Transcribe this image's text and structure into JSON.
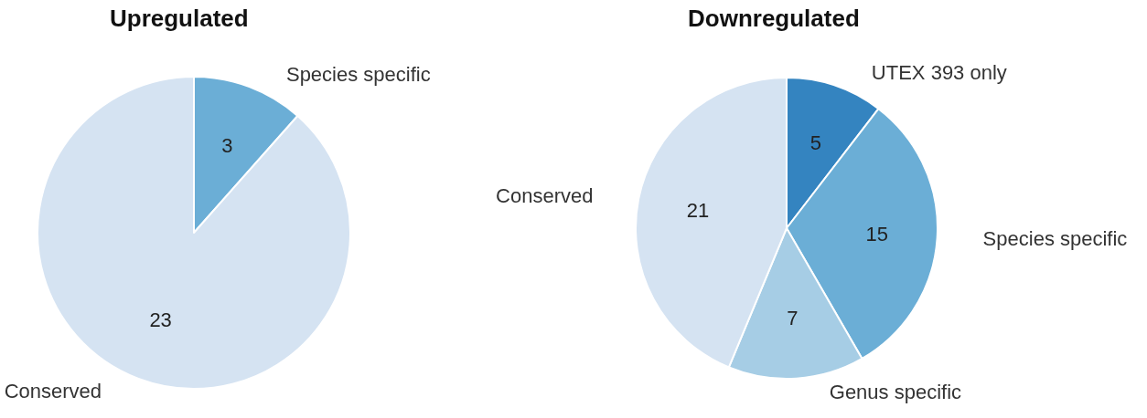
{
  "chart_data": [
    {
      "type": "pie",
      "title": "Upregulated",
      "categories": [
        "Species specific",
        "Conserved"
      ],
      "values": [
        3,
        23
      ],
      "colors": [
        "#6baed6",
        "#d5e3f2"
      ],
      "data_labels": true
    },
    {
      "type": "pie",
      "title": "Downregulated",
      "categories": [
        "UTEX 393 only",
        "Species specific",
        "Genus specific",
        "Conserved"
      ],
      "values": [
        5,
        15,
        7,
        21
      ],
      "colors": [
        "#3484c0",
        "#6baed6",
        "#a6cde5",
        "#d5e3f2"
      ],
      "data_labels": true
    }
  ]
}
